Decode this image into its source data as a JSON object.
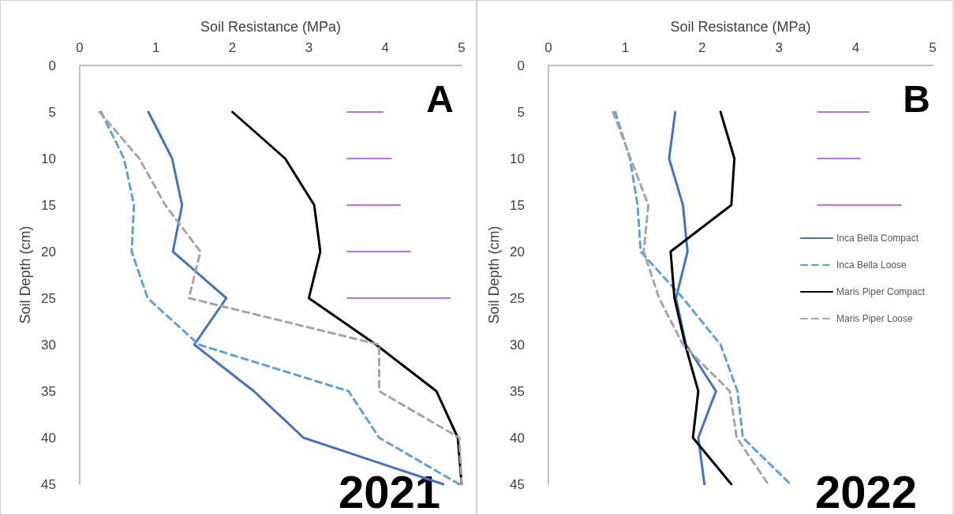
{
  "chart_data": [
    {
      "type": "line",
      "xlabel": "Soil Resistance (MPa)",
      "ylabel": "Soil Depth (cm)",
      "xlim": [
        0,
        5
      ],
      "xticks": [
        0,
        1,
        2,
        3,
        4,
        5
      ],
      "ylim": [
        45,
        0
      ],
      "yticks": [
        0,
        5,
        10,
        15,
        20,
        25,
        30,
        35,
        40,
        45
      ],
      "grid": false,
      "legend": false,
      "marker": "none",
      "annotations": [
        "A",
        "2021"
      ],
      "series": [
        {
          "color": "#4472c4",
          "line_style": "solid",
          "x": [
            0.9,
            1.21,
            1.34,
            1.22,
            1.92,
            1.5,
            2.28,
            2.93,
            4.76
          ],
          "values": [
            5,
            10,
            15,
            20,
            25,
            30,
            35,
            40,
            45
          ]
        },
        {
          "color": "#5ba3d9",
          "line_style": "dashed",
          "x": [
            0.28,
            0.58,
            0.71,
            0.68,
            0.89,
            1.56,
            3.52,
            3.92,
            4.97
          ],
          "values": [
            5,
            10,
            15,
            20,
            25,
            30,
            35,
            40,
            45
          ]
        },
        {
          "color": "#000000",
          "line_style": "solid",
          "x": [
            2.0,
            2.69,
            3.07,
            3.15,
            3.0,
            3.88,
            4.67,
            4.95,
            5.0
          ],
          "values": [
            5,
            10,
            15,
            20,
            25,
            30,
            35,
            40,
            45
          ]
        },
        {
          "color": "#a5a5a5",
          "line_style": "dashed",
          "x": [
            0.26,
            0.78,
            1.12,
            1.58,
            1.43,
            3.92,
            3.92,
            4.97,
            5.0
          ],
          "values": [
            5,
            10,
            15,
            20,
            25,
            30,
            35,
            40,
            45
          ]
        },
        {
          "color": "#b040e8",
          "line_style": "solid",
          "x": [
            3.5,
            3.97
          ],
          "values": [
            5,
            5
          ]
        },
        {
          "color": "#b040e8",
          "line_style": "solid",
          "x": [
            3.5,
            4.08
          ],
          "values": [
            10,
            10
          ]
        },
        {
          "color": "#b040e8",
          "line_style": "solid",
          "x": [
            3.5,
            4.2
          ],
          "values": [
            15,
            15
          ]
        },
        {
          "color": "#b040e8",
          "line_style": "solid",
          "x": [
            3.5,
            4.33
          ],
          "values": [
            20,
            20
          ]
        },
        {
          "color": "#b040e8",
          "line_style": "solid",
          "x": [
            3.5,
            4.85
          ],
          "values": [
            25,
            25
          ]
        }
      ]
    },
    {
      "type": "line",
      "xlabel": "Soil Resistance (MPa)",
      "ylabel": "Soil Depth (cm)",
      "xlim": [
        0,
        5
      ],
      "xticks": [
        0,
        1,
        2,
        3,
        4,
        5
      ],
      "ylim": [
        45,
        0
      ],
      "yticks": [
        0,
        5,
        10,
        15,
        20,
        25,
        30,
        35,
        40,
        45
      ],
      "grid": false,
      "legend": "right",
      "marker": "none",
      "annotations": [
        "B",
        "2022"
      ],
      "series": [
        {
          "name": "Inca Bella Compact",
          "color": "#4472c4",
          "line_style": "solid",
          "x": [
            1.65,
            1.57,
            1.75,
            1.81,
            1.66,
            1.79,
            2.18,
            1.95,
            2.03
          ],
          "values": [
            5,
            10,
            15,
            20,
            25,
            30,
            35,
            40,
            45
          ]
        },
        {
          "name": "Inca Bella Loose",
          "color": "#5ba3d9",
          "line_style": "dashed",
          "x": [
            0.87,
            1.06,
            1.16,
            1.2,
            1.75,
            2.24,
            2.46,
            2.53,
            3.15
          ],
          "values": [
            5,
            10,
            15,
            20,
            25,
            30,
            35,
            40,
            45
          ]
        },
        {
          "name": "Maris Piper Compact",
          "color": "#000000",
          "line_style": "solid",
          "x": [
            2.24,
            2.42,
            2.38,
            1.59,
            1.64,
            1.78,
            1.95,
            1.88,
            2.38
          ],
          "values": [
            5,
            10,
            15,
            20,
            25,
            30,
            35,
            40,
            45
          ]
        },
        {
          "name": "Maris Piper Loose",
          "color": "#a5a5a5",
          "line_style": "dashed",
          "x": [
            0.84,
            1.07,
            1.3,
            1.24,
            1.44,
            1.75,
            2.36,
            2.45,
            2.86
          ],
          "values": [
            5,
            10,
            15,
            20,
            25,
            30,
            35,
            40,
            45
          ]
        },
        {
          "color": "#b040e8",
          "line_style": "solid",
          "x": [
            3.5,
            4.17
          ],
          "values": [
            5,
            5
          ]
        },
        {
          "color": "#b040e8",
          "line_style": "solid",
          "x": [
            3.5,
            4.06
          ],
          "values": [
            10,
            10
          ]
        },
        {
          "color": "#b040e8",
          "line_style": "solid",
          "x": [
            3.5,
            4.59
          ],
          "values": [
            15,
            15
          ]
        }
      ]
    }
  ]
}
